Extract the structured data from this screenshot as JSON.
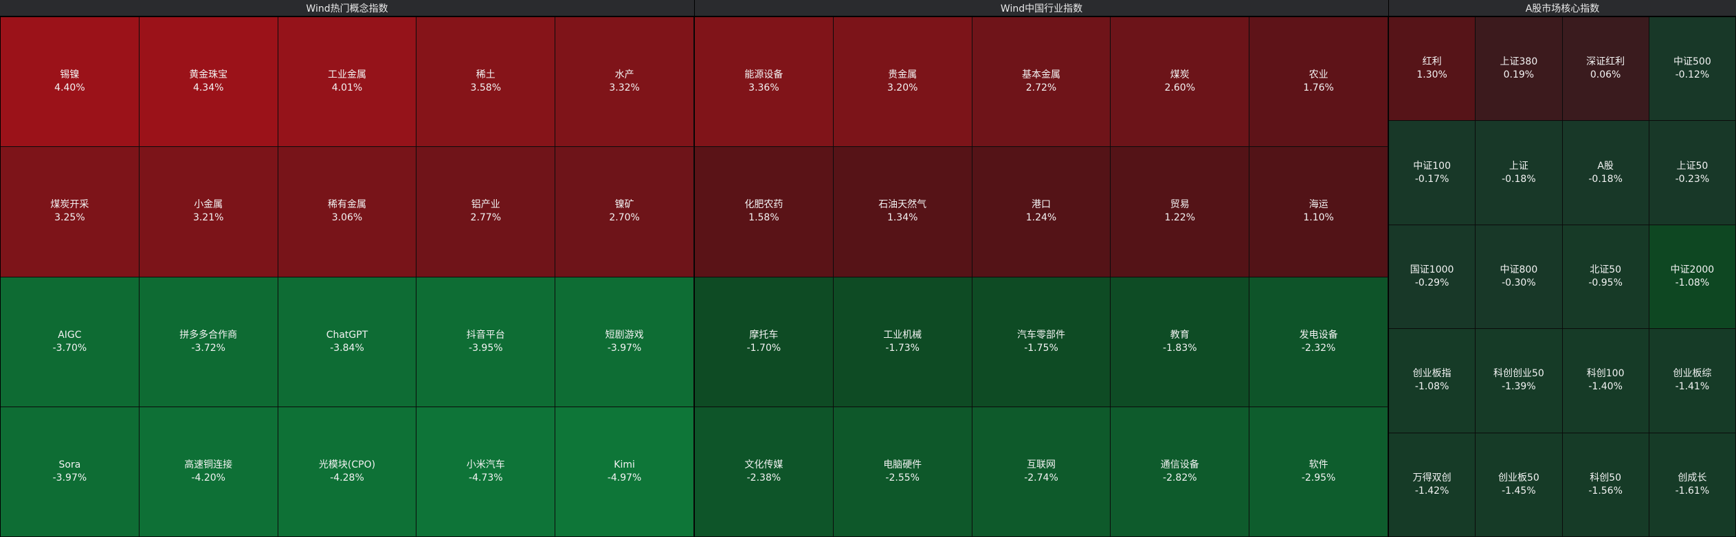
{
  "panels": [
    {
      "title": "Wind热门概念指数",
      "tiles": [
        {
          "name": "锡镍",
          "change": "4.40%",
          "color": "#9b1219"
        },
        {
          "name": "黄金珠宝",
          "change": "4.34%",
          "color": "#9b1219"
        },
        {
          "name": "工业金属",
          "change": "4.01%",
          "color": "#95131a"
        },
        {
          "name": "稀土",
          "change": "3.58%",
          "color": "#861419"
        },
        {
          "name": "水产",
          "change": "3.32%",
          "color": "#7f1419"
        },
        {
          "name": "煤炭开采",
          "change": "3.25%",
          "color": "#7d1419"
        },
        {
          "name": "小金属",
          "change": "3.21%",
          "color": "#7c1419"
        },
        {
          "name": "稀有金属",
          "change": "3.06%",
          "color": "#781419"
        },
        {
          "name": "铝产业",
          "change": "2.77%",
          "color": "#701419"
        },
        {
          "name": "镍矿",
          "change": "2.70%",
          "color": "#6e1419"
        },
        {
          "name": "AIGC",
          "change": "-3.70%",
          "color": "#0e6b33"
        },
        {
          "name": "拼多多合作商",
          "change": "-3.72%",
          "color": "#0e6b33"
        },
        {
          "name": "ChatGPT",
          "change": "-3.84%",
          "color": "#0e6c34"
        },
        {
          "name": "抖音平台",
          "change": "-3.95%",
          "color": "#0e6d34"
        },
        {
          "name": "短剧游戏",
          "change": "-3.97%",
          "color": "#0e6d34"
        },
        {
          "name": "Sora",
          "change": "-3.97%",
          "color": "#0e6d34"
        },
        {
          "name": "高速铜连接",
          "change": "-4.20%",
          "color": "#0e7036"
        },
        {
          "name": "光模块(CPO)",
          "change": "-4.28%",
          "color": "#0e7136"
        },
        {
          "name": "小米汽车",
          "change": "-4.73%",
          "color": "#0e7438"
        },
        {
          "name": "Kimi",
          "change": "-4.97%",
          "color": "#0e7638"
        }
      ]
    },
    {
      "title": "Wind中国行业指数",
      "tiles": [
        {
          "name": "能源设备",
          "change": "3.36%",
          "color": "#801419"
        },
        {
          "name": "贵金属",
          "change": "3.20%",
          "color": "#7c1419"
        },
        {
          "name": "基本金属",
          "change": "2.72%",
          "color": "#6f1419"
        },
        {
          "name": "煤炭",
          "change": "2.60%",
          "color": "#6c1419"
        },
        {
          "name": "农业",
          "change": "1.76%",
          "color": "#5e1318"
        },
        {
          "name": "化肥农药",
          "change": "1.58%",
          "color": "#5a1317"
        },
        {
          "name": "石油天然气",
          "change": "1.34%",
          "color": "#561317"
        },
        {
          "name": "港口",
          "change": "1.24%",
          "color": "#541317"
        },
        {
          "name": "贸易",
          "change": "1.22%",
          "color": "#541317"
        },
        {
          "name": "海运",
          "change": "1.10%",
          "color": "#521317"
        },
        {
          "name": "摩托车",
          "change": "-1.70%",
          "color": "#0e4b24"
        },
        {
          "name": "工业机械",
          "change": "-1.73%",
          "color": "#0e4b24"
        },
        {
          "name": "汽车零部件",
          "change": "-1.75%",
          "color": "#0e4b24"
        },
        {
          "name": "教育",
          "change": "-1.83%",
          "color": "#0e4c25"
        },
        {
          "name": "发电设备",
          "change": "-2.32%",
          "color": "#0e5429"
        },
        {
          "name": "文化传媒",
          "change": "-2.38%",
          "color": "#0e5529"
        },
        {
          "name": "电脑硬件",
          "change": "-2.55%",
          "color": "#0e582a"
        },
        {
          "name": "互联网",
          "change": "-2.74%",
          "color": "#0e5a2b"
        },
        {
          "name": "通信设备",
          "change": "-2.82%",
          "color": "#0e5b2c"
        },
        {
          "name": "软件",
          "change": "-2.95%",
          "color": "#0e5d2d"
        }
      ]
    },
    {
      "title": "A股市场核心指数",
      "tiles": [
        {
          "name": "红利",
          "change": "1.30%",
          "color": "#561418"
        },
        {
          "name": "上证380",
          "change": "0.19%",
          "color": "#3c1a1d"
        },
        {
          "name": "深证红利",
          "change": "0.06%",
          "color": "#3a1b1e"
        },
        {
          "name": "中证500",
          "change": "-0.12%",
          "color": "#183828"
        },
        {
          "name": "中证100",
          "change": "-0.17%",
          "color": "#183828"
        },
        {
          "name": "上证",
          "change": "-0.18%",
          "color": "#183828"
        },
        {
          "name": "A股",
          "change": "-0.18%",
          "color": "#183828"
        },
        {
          "name": "上证50",
          "change": "-0.23%",
          "color": "#183828"
        },
        {
          "name": "国证1000",
          "change": "-0.29%",
          "color": "#183828"
        },
        {
          "name": "中证800",
          "change": "-0.30%",
          "color": "#183828"
        },
        {
          "name": "北证50",
          "change": "-0.95%",
          "color": "#173a27"
        },
        {
          "name": "中证2000",
          "change": "-1.08%",
          "color": "#0e4722"
        },
        {
          "name": "创业板指",
          "change": "-1.08%",
          "color": "#163b27"
        },
        {
          "name": "科创创业50",
          "change": "-1.39%",
          "color": "#163b27"
        },
        {
          "name": "科创100",
          "change": "-1.40%",
          "color": "#163b27"
        },
        {
          "name": "创业板综",
          "change": "-1.41%",
          "color": "#163b27"
        },
        {
          "name": "万得双创",
          "change": "-1.42%",
          "color": "#163b27"
        },
        {
          "name": "创业板50",
          "change": "-1.45%",
          "color": "#163b27"
        },
        {
          "name": "科创50",
          "change": "-1.56%",
          "color": "#163b27"
        },
        {
          "name": "创成长",
          "change": "-1.61%",
          "color": "#163b27"
        }
      ]
    }
  ]
}
